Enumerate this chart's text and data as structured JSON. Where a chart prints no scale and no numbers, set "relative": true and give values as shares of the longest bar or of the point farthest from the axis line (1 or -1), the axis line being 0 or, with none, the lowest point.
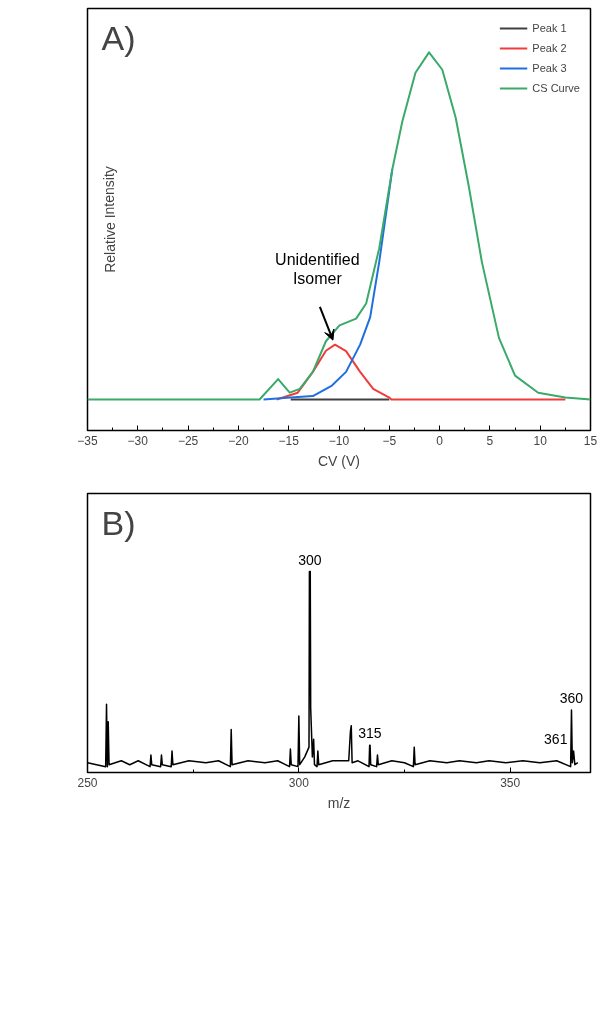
{
  "chart_data": [
    {
      "type": "line",
      "relative": true,
      "xlabel": "CV (V)",
      "ylabel": "Relative Intensity",
      "xlim": [
        -35,
        15
      ],
      "xticks": [
        -35,
        -30,
        -25,
        -20,
        -15,
        -10,
        -5,
        0,
        5,
        10,
        15
      ],
      "grid": false,
      "legend": "top right",
      "annotations": [
        "A)",
        {
          "text": "Unidentified\nIsomer",
          "x": -10.4,
          "y": 0.227
        }
      ],
      "series": [
        {
          "name": "Peak 1",
          "color": "#404040",
          "x": [
            -14.8,
            -5.0
          ],
          "values": [
            0.082,
            0.082
          ]
        },
        {
          "name": "Peak 2",
          "color": "#f03c3c",
          "x": [
            -16.2,
            -14.1,
            -12.6,
            -11.3,
            -10.4,
            -9.3,
            -7.9,
            -6.6,
            -5.0,
            -4.8,
            12.5
          ],
          "values": [
            0.082,
            0.1,
            0.155,
            0.211,
            0.227,
            0.21,
            0.155,
            0.11,
            0.087,
            0.082,
            0.082
          ]
        },
        {
          "name": "Peak 3",
          "color": "#1f6fe0",
          "x": [
            -17.5,
            -14.8,
            -12.6,
            -10.7,
            -9.3,
            -7.9,
            -6.9,
            -6.0,
            -4.7
          ],
          "values": [
            0.082,
            0.087,
            0.091,
            0.119,
            0.155,
            0.227,
            0.3,
            0.446,
            0.691
          ]
        },
        {
          "name": "CS Curve",
          "color": "#3aaa6a",
          "x": [
            -35,
            -17.9,
            -16.05,
            -14.9,
            -13.9,
            -12.6,
            -11.3,
            -9.95,
            -8.3,
            -7.3,
            -6.0,
            -4.7,
            -3.7,
            -2.4,
            -1.05,
            0.27,
            1.6,
            2.9,
            4.2,
            5.9,
            7.5,
            9.8,
            12.5,
            15
          ],
          "values": [
            0.082,
            0.082,
            0.136,
            0.1,
            0.11,
            0.155,
            0.236,
            0.278,
            0.296,
            0.336,
            0.482,
            0.691,
            0.818,
            0.946,
            1.0,
            0.954,
            0.827,
            0.646,
            0.446,
            0.245,
            0.145,
            0.1,
            0.087,
            0.082
          ]
        }
      ]
    },
    {
      "type": "line",
      "relative": true,
      "xlabel": "m/z",
      "xlim": [
        250,
        369
      ],
      "xticks": [
        250,
        300,
        350
      ],
      "grid": false,
      "annotations": [
        "B)",
        {
          "text": "300",
          "x": 302.6,
          "y": 1.0
        },
        {
          "text": "315",
          "x": 316.8,
          "y": 0.11
        },
        {
          "text": "360",
          "x": 364.5,
          "y": 0.29
        },
        {
          "text": "361",
          "x": 365.2,
          "y": 0.08
        }
      ],
      "series": [
        {
          "color": "#000000",
          "x": [
            250,
            254.3,
            254.5,
            254.7,
            254.9,
            255.1,
            258,
            260,
            262,
            264.8,
            265,
            265.2,
            267.3,
            267.5,
            267.7,
            269.8,
            270,
            270.2,
            274,
            278,
            281,
            283.8,
            284,
            284.2,
            288,
            292,
            295,
            297.8,
            298,
            298.2,
            299.8,
            300,
            300.2,
            301.4,
            302.4,
            302.5,
            302.7,
            302.8,
            303.2,
            303.5,
            303.7,
            304.3,
            304.5,
            304.7,
            308,
            311.8,
            312.2,
            312.4,
            312.6,
            314,
            316.6,
            316.75,
            316.85,
            317,
            318.4,
            318.6,
            318.8,
            322,
            325,
            327.1,
            327.3,
            327.5,
            331,
            335,
            338,
            342,
            345,
            349,
            353,
            357,
            361,
            364.3,
            364.5,
            364.7,
            365,
            365.3,
            366
          ],
          "values": [
            0.02,
            0,
            0.32,
            0,
            0.23,
            0.01,
            0.03,
            0.01,
            0.03,
            0,
            0.06,
            0.01,
            0,
            0.06,
            0.01,
            0,
            0.08,
            0.01,
            0.03,
            0.02,
            0.03,
            0,
            0.19,
            0.01,
            0.03,
            0.02,
            0.03,
            0,
            0.09,
            0.01,
            0,
            0.26,
            0.01,
            0.05,
            0.1,
            1.0,
            1.0,
            0.3,
            0.05,
            0.14,
            0.01,
            0,
            0.08,
            0.01,
            0.03,
            0.03,
            0.18,
            0.21,
            0.02,
            0.03,
            0,
            0.11,
            0.11,
            0.01,
            0,
            0.06,
            0.01,
            0.03,
            0.02,
            0,
            0.1,
            0.01,
            0.03,
            0.02,
            0.03,
            0.02,
            0.03,
            0.02,
            0.03,
            0.02,
            0.03,
            0,
            0.29,
            0.02,
            0.08,
            0.01,
            0.02
          ]
        }
      ]
    }
  ]
}
